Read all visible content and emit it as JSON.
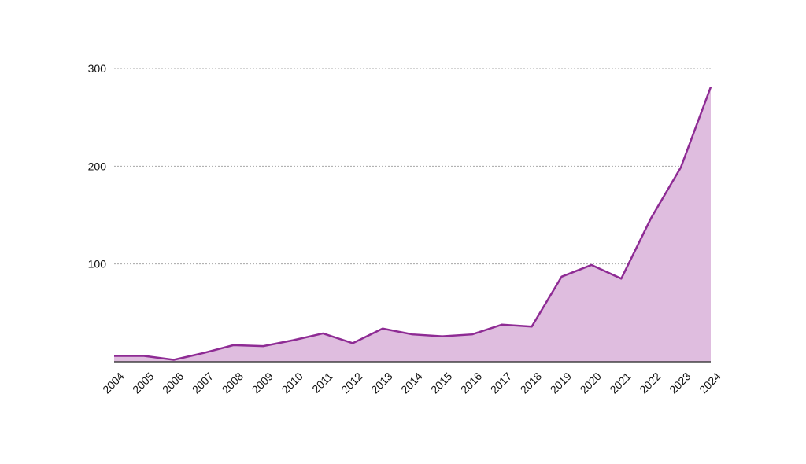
{
  "chart_data": {
    "type": "area",
    "title": "",
    "xlabel": "",
    "ylabel": "",
    "x": [
      "2004",
      "2005",
      "2006",
      "2007",
      "2008",
      "2009",
      "2010",
      "2011",
      "2012",
      "2013",
      "2014",
      "2015",
      "2016",
      "2017",
      "2018",
      "2019",
      "2020",
      "2021",
      "2022",
      "2023",
      "2024"
    ],
    "series": [
      {
        "values": [
          6,
          6,
          2,
          9,
          17,
          16,
          22,
          29,
          19,
          34,
          28,
          26,
          28,
          38,
          36,
          87,
          99,
          85,
          147,
          199,
          281
        ]
      }
    ],
    "ylim": [
      0,
      300
    ],
    "yticks": [
      100,
      200,
      300
    ],
    "grid": true,
    "legend": "none",
    "colors": {
      "line": "#8e2b94",
      "fill": "#dfbddf",
      "grid": "#a8a8a8",
      "axis": "#222222"
    }
  }
}
